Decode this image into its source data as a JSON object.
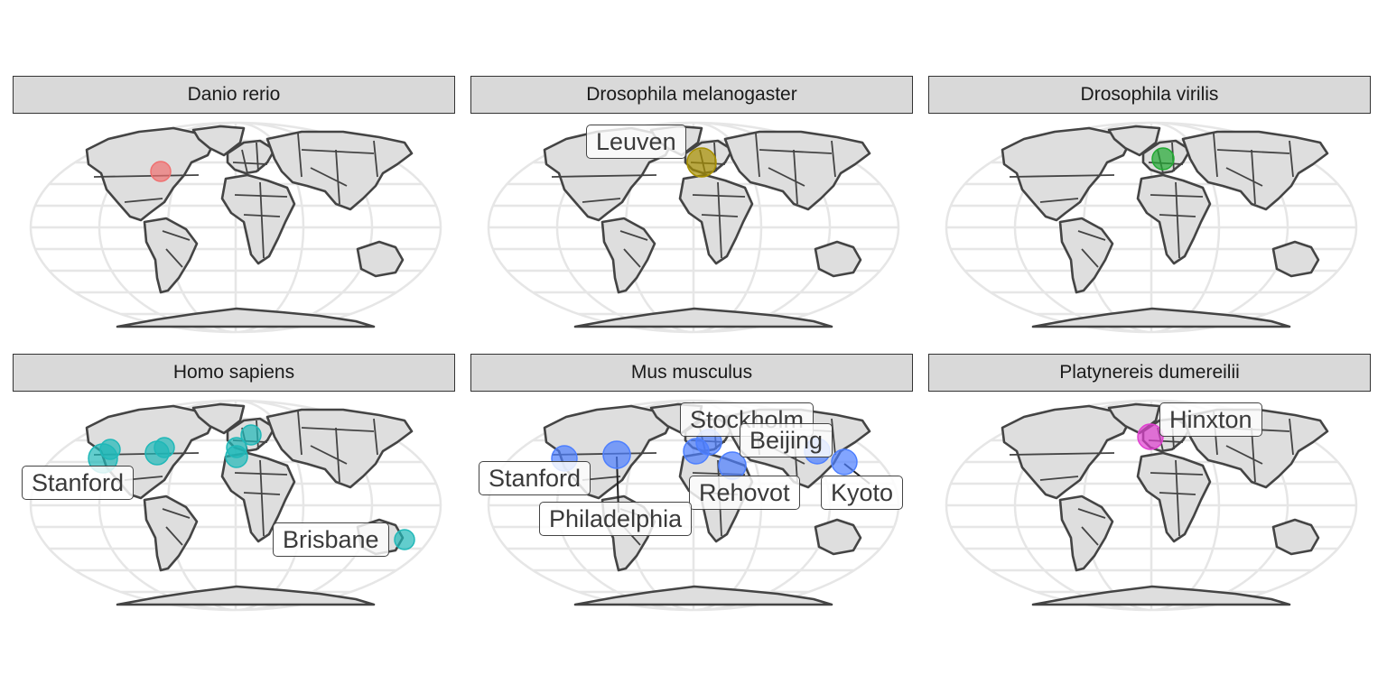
{
  "panels": [
    {
      "title": "Danio rerio",
      "color": "#f07070",
      "labels": []
    },
    {
      "title": "Drosophila melanogaster",
      "color": "#a89000",
      "labels": [
        "Leuven"
      ]
    },
    {
      "title": "Drosophila virilis",
      "color": "#22aa33",
      "labels": []
    },
    {
      "title": "Homo sapiens",
      "color": "#20b8b8",
      "labels": [
        "Stanford",
        "Brisbane"
      ]
    },
    {
      "title": "Mus musculus",
      "color": "#4d7fff",
      "labels": [
        "Stockholm",
        "Beijing",
        "Stanford",
        "Rehovot",
        "Kyoto",
        "Philadelphia"
      ]
    },
    {
      "title": "Platynereis dumereilii",
      "color": "#e040d0",
      "labels": [
        "Hinxton"
      ]
    }
  ]
}
